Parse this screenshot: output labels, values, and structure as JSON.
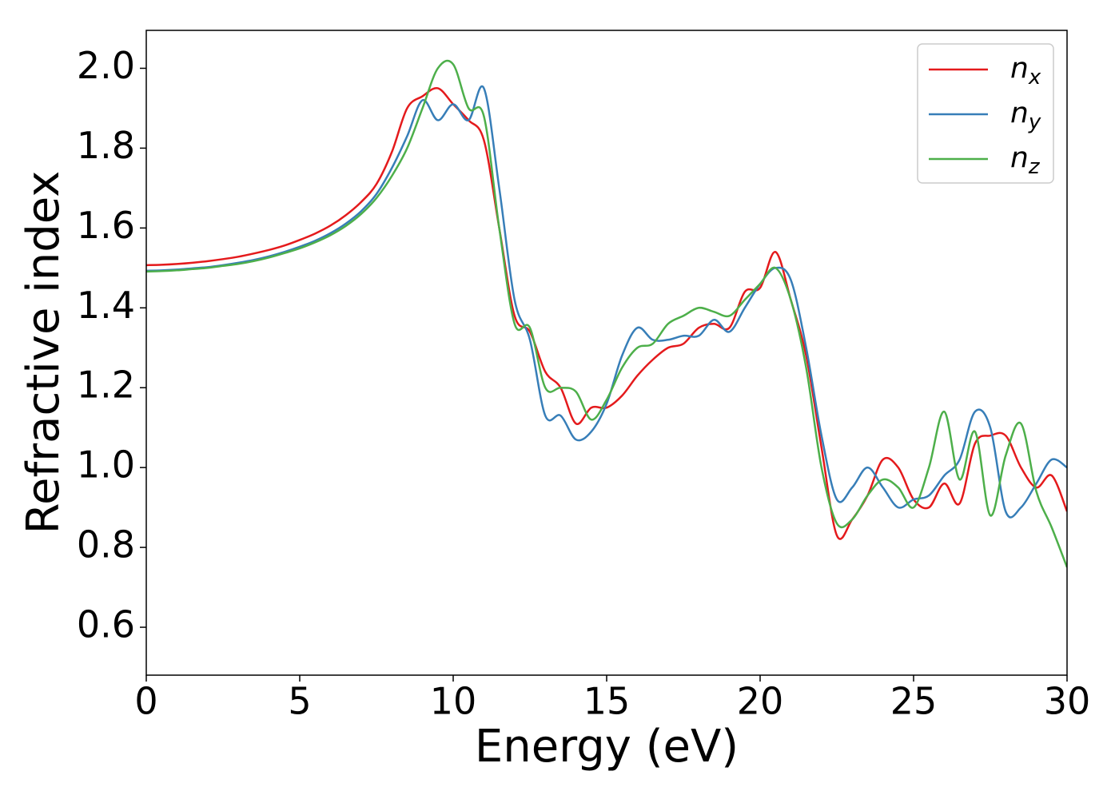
{
  "chart_data": {
    "type": "line",
    "xlabel": "Energy (eV)",
    "ylabel": "Refractive index",
    "x": [
      0,
      0.5,
      1,
      1.5,
      2,
      2.5,
      3,
      3.5,
      4,
      4.5,
      5,
      5.5,
      6,
      6.5,
      7,
      7.5,
      8,
      8.5,
      9,
      9.5,
      10,
      10.5,
      11,
      11.5,
      12,
      12.5,
      13,
      13.5,
      14,
      14.5,
      15,
      15.5,
      16,
      16.5,
      17,
      17.5,
      18,
      18.5,
      19,
      19.5,
      20,
      20.5,
      21,
      21.5,
      22,
      22.5,
      23,
      23.5,
      24,
      24.5,
      25,
      25.5,
      26,
      26.5,
      27,
      27.5,
      28,
      28.5,
      29,
      29.5,
      30
    ],
    "series": [
      {
        "name": "n_x",
        "color": "#e41a1c",
        "values": [
          1.507,
          1.508,
          1.51,
          1.513,
          1.517,
          1.522,
          1.528,
          1.536,
          1.545,
          1.556,
          1.57,
          1.586,
          1.606,
          1.632,
          1.665,
          1.71,
          1.79,
          1.9,
          1.93,
          1.95,
          1.91,
          1.87,
          1.82,
          1.6,
          1.38,
          1.34,
          1.24,
          1.2,
          1.11,
          1.15,
          1.15,
          1.18,
          1.23,
          1.27,
          1.3,
          1.31,
          1.35,
          1.36,
          1.35,
          1.44,
          1.45,
          1.54,
          1.42,
          1.28,
          1.05,
          0.83,
          0.87,
          0.93,
          1.02,
          1.0,
          0.92,
          0.9,
          0.96,
          0.91,
          1.06,
          1.08,
          1.08,
          1.0,
          0.95,
          0.98,
          0.89
        ]
      },
      {
        "name": "n_y",
        "color": "#377eb8",
        "values": [
          1.493,
          1.494,
          1.496,
          1.499,
          1.502,
          1.507,
          1.513,
          1.52,
          1.529,
          1.54,
          1.553,
          1.568,
          1.587,
          1.611,
          1.642,
          1.685,
          1.75,
          1.83,
          1.92,
          1.87,
          1.91,
          1.87,
          1.95,
          1.7,
          1.42,
          1.32,
          1.13,
          1.13,
          1.07,
          1.09,
          1.16,
          1.28,
          1.35,
          1.32,
          1.32,
          1.33,
          1.33,
          1.37,
          1.34,
          1.4,
          1.46,
          1.5,
          1.47,
          1.3,
          1.08,
          0.92,
          0.95,
          1.0,
          0.95,
          0.9,
          0.92,
          0.93,
          0.98,
          1.02,
          1.14,
          1.1,
          0.89,
          0.9,
          0.96,
          1.02,
          1.0
        ]
      },
      {
        "name": "n_z",
        "color": "#4daf4a",
        "values": [
          1.491,
          1.492,
          1.494,
          1.497,
          1.5,
          1.505,
          1.51,
          1.517,
          1.526,
          1.537,
          1.549,
          1.564,
          1.582,
          1.605,
          1.635,
          1.675,
          1.73,
          1.8,
          1.9,
          2.0,
          2.01,
          1.9,
          1.88,
          1.6,
          1.36,
          1.35,
          1.2,
          1.2,
          1.19,
          1.12,
          1.17,
          1.25,
          1.3,
          1.31,
          1.36,
          1.38,
          1.4,
          1.39,
          1.38,
          1.42,
          1.46,
          1.5,
          1.42,
          1.25,
          1.0,
          0.86,
          0.87,
          0.93,
          0.97,
          0.95,
          0.9,
          1.0,
          1.14,
          0.97,
          1.09,
          0.88,
          1.03,
          1.11,
          0.94,
          0.85,
          0.75
        ]
      }
    ],
    "xlim": [
      0,
      30
    ],
    "xticks": [
      0,
      5,
      10,
      15,
      20,
      25,
      30
    ],
    "ylim": [
      0.48,
      2.095
    ],
    "yticks": [
      0.6,
      0.8,
      {
        "value": 1.0,
        "label": "1.0"
      },
      1.2,
      1.4,
      1.6,
      1.8,
      {
        "value": 2.0,
        "label": "2.0"
      }
    ],
    "legend": "upper right",
    "grid": false
  }
}
